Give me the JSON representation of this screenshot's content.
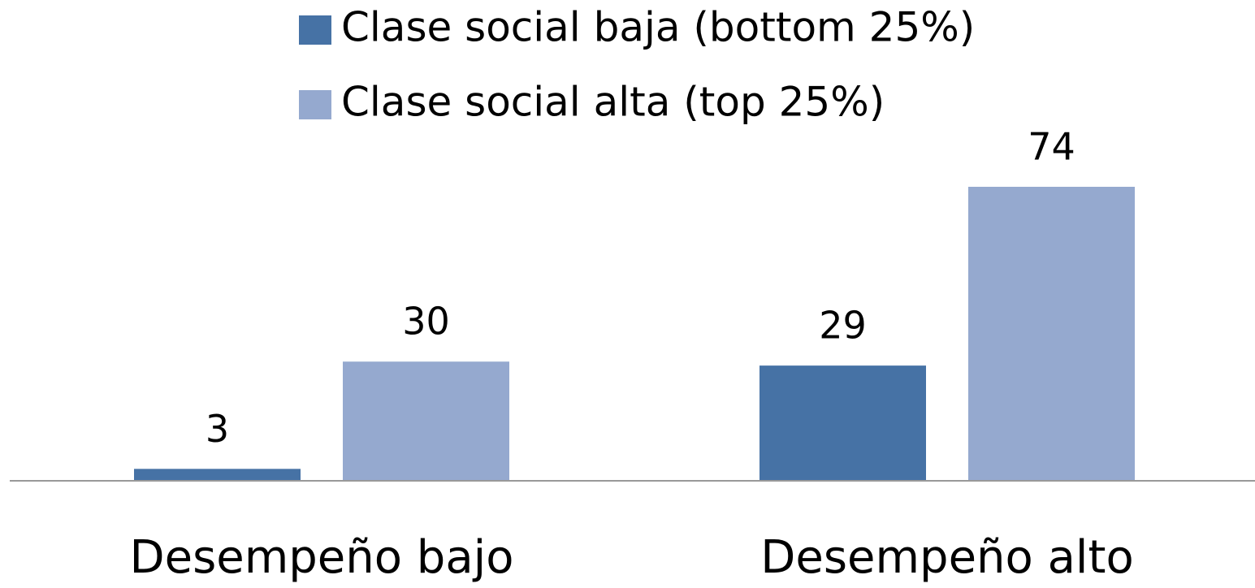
{
  "chart_data": {
    "type": "bar",
    "categories": [
      "Desempeño bajo",
      "Desempeño alto"
    ],
    "series": [
      {
        "name": "Clase social baja (bottom 25%)",
        "color": "#4672a5",
        "values": [
          3,
          29
        ]
      },
      {
        "name": "Clase social alta (top 25%)",
        "color": "#95a9cf",
        "values": [
          30,
          74
        ]
      }
    ],
    "legend": "top"
  }
}
